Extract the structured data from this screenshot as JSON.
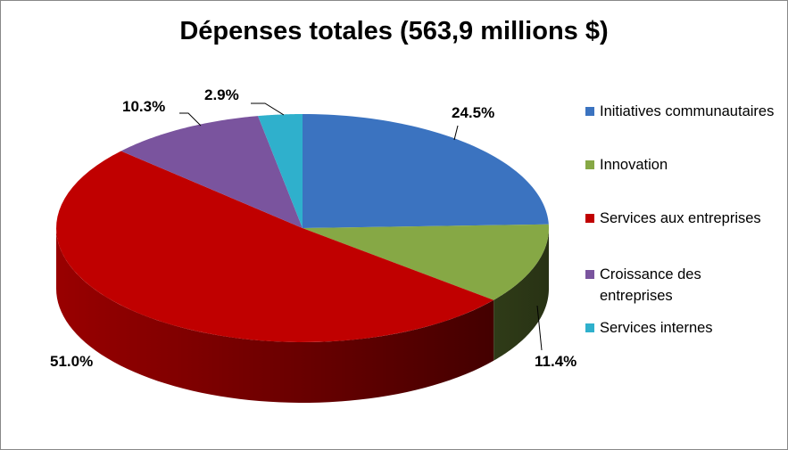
{
  "chart_data": {
    "type": "pie",
    "title": "Dépenses totales (563,9 millions $)",
    "three_d": true,
    "legend_position": "right",
    "slices": [
      {
        "name": "Initiatives communautaires",
        "value": 24.5,
        "label": "24.5%",
        "color": "#3b73c0"
      },
      {
        "name": "Innovation",
        "value": 11.4,
        "label": "11.4%",
        "color": "#86a845"
      },
      {
        "name": "Services aux entreprises",
        "value": 51.0,
        "label": "51.0%",
        "color": "#c00000"
      },
      {
        "name": "Croissance des entreprises",
        "value": 10.3,
        "label": "10.3%",
        "color": "#7a549e"
      },
      {
        "name": "Services internes",
        "value": 2.9,
        "label": "2.9%",
        "color": "#2fb0cc"
      }
    ]
  }
}
